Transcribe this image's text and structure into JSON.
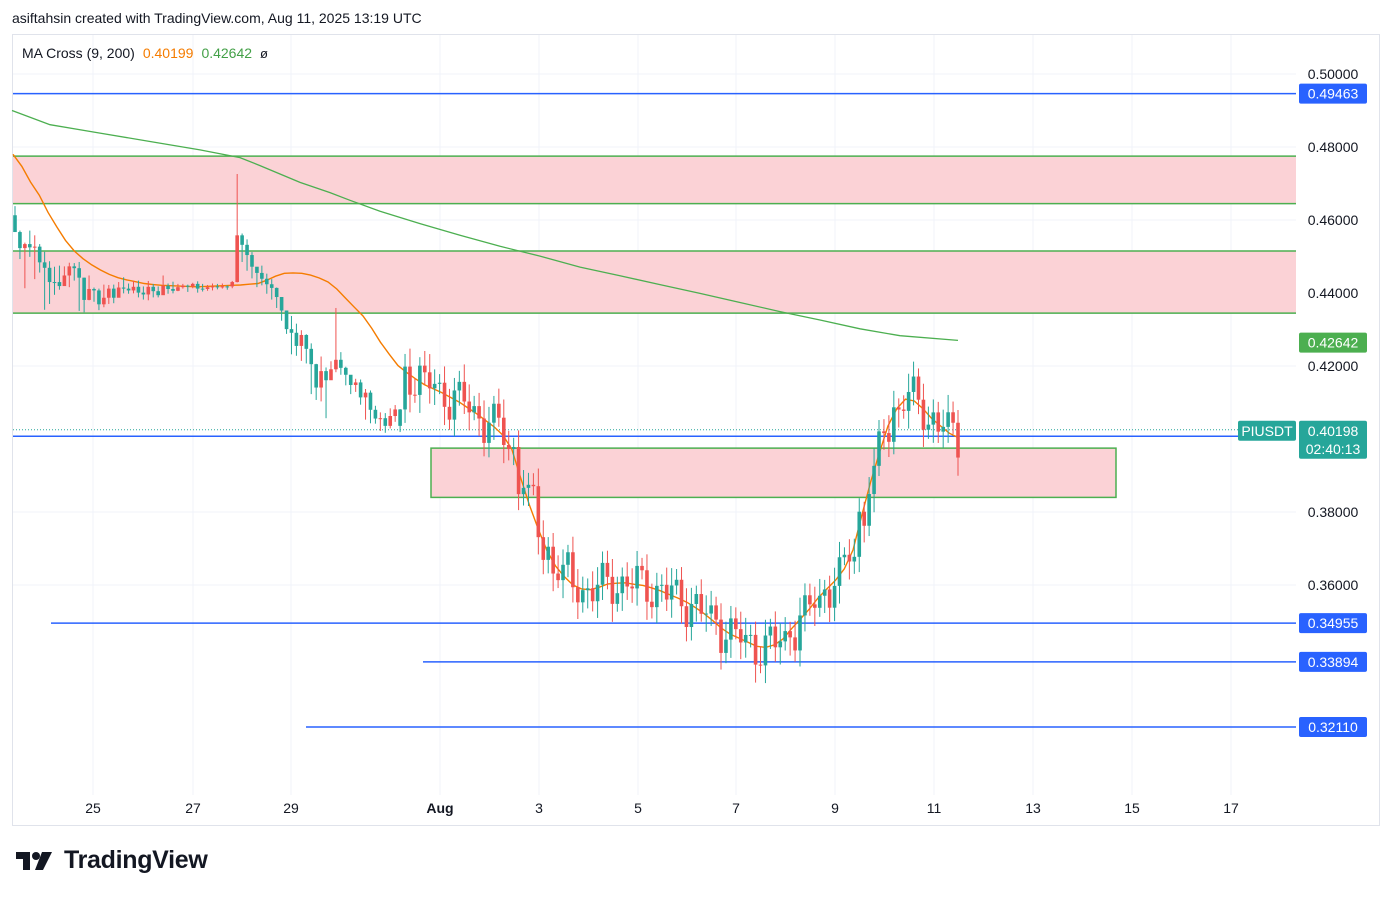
{
  "header": {
    "credit": "asiftahsin created with TradingView.com, Aug 11, 2025 13:19 UTC"
  },
  "indicator": {
    "name": "MA Cross (9, 200)",
    "ma_fast_value": "0.40199",
    "ma_slow_value": "0.42642",
    "extra": "ø"
  },
  "brand": {
    "name": "TradingView"
  },
  "colors": {
    "up": "#26a69a",
    "down": "#ef5350",
    "ma_fast": "#f57c00",
    "ma_slow": "#4caf50",
    "level_line": "#2962ff",
    "zone_fill": "#fbd2d6",
    "zone_border": "#4caf50",
    "ticker_badge": "#26a69a",
    "grid": "#f0f3fa"
  },
  "chart_data": {
    "type": "candlestick",
    "symbol": "PIUSDT",
    "y_ticks": [
      "0.50000",
      "0.48000",
      "0.46000",
      "0.44000",
      "0.42000",
      "0.38000",
      "0.36000"
    ],
    "x_ticks": [
      "25",
      "27",
      "29",
      "Aug",
      "3",
      "5",
      "7",
      "9",
      "11",
      "13",
      "15",
      "17"
    ],
    "ylim": [
      0.3,
      0.505
    ],
    "grid": true,
    "levels": [
      {
        "value": 0.49463,
        "label": "0.49463"
      },
      {
        "value": 0.40076,
        "label": "0.40076"
      },
      {
        "value": 0.34955,
        "label": "0.34955"
      },
      {
        "value": 0.33894,
        "label": "0.33894"
      },
      {
        "value": 0.3211,
        "label": "0.32110"
      }
    ],
    "zones": [
      {
        "top": 0.4775,
        "bottom": 0.4645
      },
      {
        "top": 0.4515,
        "bottom": 0.4345
      },
      {
        "top": 0.3975,
        "bottom": 0.384
      }
    ],
    "price_badges": [
      {
        "label": "0.42642",
        "value": 0.42642,
        "series": "MA 200"
      },
      {
        "label": "0.40199",
        "value": 0.40199,
        "series": "MA 9"
      }
    ],
    "last_price": {
      "value": "0.40198",
      "countdown": "02:40:13"
    },
    "ma_fast": [
      0.478,
      0.4747,
      0.4704,
      0.4668,
      0.4621,
      0.4581,
      0.4544,
      0.4515,
      0.4494,
      0.4477,
      0.4463,
      0.4451,
      0.4442,
      0.4436,
      0.4431,
      0.4426,
      0.4423,
      0.4421,
      0.442,
      0.4419,
      0.4418,
      0.4417,
      0.4418,
      0.4419,
      0.442,
      0.4421,
      0.4422,
      0.4424,
      0.4426,
      0.4435,
      0.4446,
      0.4454,
      0.4455,
      0.4454,
      0.4449,
      0.4441,
      0.443,
      0.4411,
      0.4386,
      0.4361,
      0.4337,
      0.4303,
      0.4265,
      0.4232,
      0.4201,
      0.4182,
      0.4165,
      0.4149,
      0.4138,
      0.4127,
      0.4114,
      0.4101,
      0.4085,
      0.4069,
      0.4051,
      0.4033,
      0.401,
      0.3972,
      0.3895,
      0.382,
      0.3755,
      0.3695,
      0.3652,
      0.3623,
      0.36,
      0.3589,
      0.3587,
      0.3594,
      0.3603,
      0.3605,
      0.3606,
      0.3602,
      0.3599,
      0.3592,
      0.3584,
      0.3574,
      0.3564,
      0.3553,
      0.3538,
      0.3521,
      0.3502,
      0.3481,
      0.3465,
      0.3454,
      0.3443,
      0.3432,
      0.3429,
      0.3436,
      0.3452,
      0.3481,
      0.3507,
      0.3534,
      0.3564,
      0.3589,
      0.3613,
      0.3644,
      0.3696,
      0.3791,
      0.3881,
      0.3961,
      0.4036,
      0.4083,
      0.4109,
      0.4104,
      0.4083,
      0.4056,
      0.4036,
      0.4016,
      0.4004
    ],
    "ma_slow": [
      0.49,
      0.4861,
      0.4838,
      0.4815,
      0.4792,
      0.4771,
      0.4749,
      0.4726,
      0.4703,
      0.4675,
      0.4654,
      0.4624,
      0.459,
      0.4558,
      0.4528,
      0.4501,
      0.4471,
      0.4447,
      0.4423,
      0.4399,
      0.4374,
      0.4349,
      0.4326,
      0.4302,
      0.4283,
      0.427
    ],
    "ma_slow_x": [
      12,
      50,
      100,
      150,
      200,
      240,
      260,
      280,
      300,
      330,
      350,
      380,
      420,
      460,
      500,
      540,
      580,
      620,
      660,
      700,
      740,
      780,
      820,
      860,
      900,
      958
    ],
    "candles_x0": 15,
    "candles_dx": 4.95,
    "candles": [
      [
        0.4567,
        0.4638,
        0.4567,
        0.4613
      ],
      [
        0.4523,
        0.4571,
        0.4493,
        0.4567
      ],
      [
        0.4534,
        0.4538,
        0.4413,
        0.4523
      ],
      [
        0.4525,
        0.4571,
        0.4499,
        0.4534
      ],
      [
        0.4527,
        0.4558,
        0.4438,
        0.4525
      ],
      [
        0.4484,
        0.4534,
        0.4456,
        0.4527
      ],
      [
        0.4469,
        0.4513,
        0.4354,
        0.4484
      ],
      [
        0.443,
        0.4487,
        0.437,
        0.4469
      ],
      [
        0.443,
        0.4472,
        0.4395,
        0.443
      ],
      [
        0.4419,
        0.4475,
        0.4409,
        0.443
      ],
      [
        0.4448,
        0.4473,
        0.4431,
        0.4419
      ],
      [
        0.4473,
        0.4483,
        0.4416,
        0.4448
      ],
      [
        0.4468,
        0.4482,
        0.4434,
        0.4473
      ],
      [
        0.4442,
        0.4485,
        0.4351,
        0.4468
      ],
      [
        0.4381,
        0.4442,
        0.4347,
        0.4442
      ],
      [
        0.4411,
        0.4448,
        0.438,
        0.4381
      ],
      [
        0.4407,
        0.4415,
        0.4376,
        0.4411
      ],
      [
        0.4369,
        0.4412,
        0.4353,
        0.4407
      ],
      [
        0.4387,
        0.4423,
        0.4361,
        0.4369
      ],
      [
        0.4412,
        0.4422,
        0.437,
        0.4387
      ],
      [
        0.4387,
        0.4423,
        0.4372,
        0.4412
      ],
      [
        0.4415,
        0.443,
        0.439,
        0.4387
      ],
      [
        0.4412,
        0.4443,
        0.4399,
        0.4415
      ],
      [
        0.4407,
        0.4426,
        0.4398,
        0.4412
      ],
      [
        0.4417,
        0.4433,
        0.4399,
        0.4407
      ],
      [
        0.4401,
        0.4434,
        0.4388,
        0.4417
      ],
      [
        0.4396,
        0.4418,
        0.4382,
        0.4401
      ],
      [
        0.4417,
        0.4433,
        0.438,
        0.4396
      ],
      [
        0.4405,
        0.4425,
        0.4388,
        0.4417
      ],
      [
        0.4394,
        0.4418,
        0.4388,
        0.4405
      ],
      [
        0.442,
        0.4448,
        0.4404,
        0.4394
      ],
      [
        0.4411,
        0.4426,
        0.4398,
        0.442
      ],
      [
        0.4406,
        0.4431,
        0.4399,
        0.4411
      ],
      [
        0.4416,
        0.4425,
        0.4405,
        0.4406
      ],
      [
        0.442,
        0.4425,
        0.4412,
        0.4416
      ],
      [
        0.4418,
        0.4423,
        0.4403,
        0.442
      ],
      [
        0.4425,
        0.4428,
        0.4413,
        0.4418
      ],
      [
        0.4412,
        0.4432,
        0.4401,
        0.4425
      ],
      [
        0.4411,
        0.4425,
        0.4404,
        0.4412
      ],
      [
        0.4416,
        0.4422,
        0.4406,
        0.4411
      ],
      [
        0.4418,
        0.4426,
        0.4407,
        0.4416
      ],
      [
        0.4416,
        0.4425,
        0.441,
        0.4418
      ],
      [
        0.4418,
        0.4426,
        0.4412,
        0.4416
      ],
      [
        0.4418,
        0.4421,
        0.4409,
        0.4418
      ],
      [
        0.443,
        0.4433,
        0.4413,
        0.4418
      ],
      [
        0.4558,
        0.4726,
        0.4429,
        0.443
      ],
      [
        0.4532,
        0.4563,
        0.4485,
        0.4558
      ],
      [
        0.4504,
        0.4547,
        0.4461,
        0.4532
      ],
      [
        0.4472,
        0.4512,
        0.444,
        0.4504
      ],
      [
        0.4455,
        0.4471,
        0.4416,
        0.4472
      ],
      [
        0.4439,
        0.4475,
        0.4421,
        0.4455
      ],
      [
        0.4424,
        0.4453,
        0.4398,
        0.4439
      ],
      [
        0.4414,
        0.4438,
        0.4382,
        0.4424
      ],
      [
        0.4389,
        0.4415,
        0.4359,
        0.4414
      ],
      [
        0.4352,
        0.4387,
        0.4324,
        0.4389
      ],
      [
        0.4301,
        0.4352,
        0.4288,
        0.4352
      ],
      [
        0.4291,
        0.4337,
        0.4232,
        0.4301
      ],
      [
        0.4255,
        0.4316,
        0.4228,
        0.4291
      ],
      [
        0.4285,
        0.4298,
        0.4214,
        0.4255
      ],
      [
        0.4247,
        0.4287,
        0.4207,
        0.4285
      ],
      [
        0.4205,
        0.4262,
        0.4123,
        0.4247
      ],
      [
        0.4141,
        0.4206,
        0.4107,
        0.4205
      ],
      [
        0.4186,
        0.4226,
        0.4103,
        0.4141
      ],
      [
        0.4161,
        0.4196,
        0.4057,
        0.4186
      ],
      [
        0.4191,
        0.4213,
        0.4166,
        0.4161
      ],
      [
        0.4217,
        0.4359,
        0.4183,
        0.4191
      ],
      [
        0.4195,
        0.4238,
        0.4176,
        0.4217
      ],
      [
        0.4176,
        0.4198,
        0.4147,
        0.4195
      ],
      [
        0.4148,
        0.4175,
        0.4123,
        0.4176
      ],
      [
        0.4155,
        0.4165,
        0.4129,
        0.4148
      ],
      [
        0.4114,
        0.4163,
        0.4094,
        0.4155
      ],
      [
        0.4127,
        0.4137,
        0.4053,
        0.4114
      ],
      [
        0.408,
        0.4133,
        0.4043,
        0.4127
      ],
      [
        0.4056,
        0.4091,
        0.4042,
        0.408
      ],
      [
        0.4057,
        0.4073,
        0.4022,
        0.4056
      ],
      [
        0.4036,
        0.4071,
        0.4017,
        0.4057
      ],
      [
        0.4063,
        0.4084,
        0.4029,
        0.4036
      ],
      [
        0.4081,
        0.4093,
        0.4047,
        0.4063
      ],
      [
        0.4036,
        0.4082,
        0.4019,
        0.4081
      ]
    ]
  }
}
